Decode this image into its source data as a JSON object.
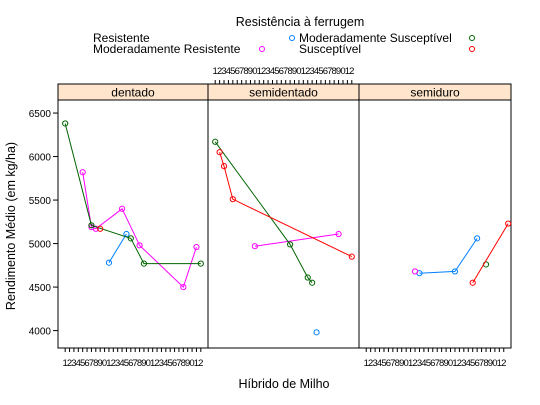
{
  "chart_data": {
    "type": "line",
    "legend": {
      "title": "Resistência à ferrugem",
      "placement": "top",
      "entries": [
        {
          "name": "Resistente",
          "color": "#0080ff"
        },
        {
          "name": "Moderadamente Resistente",
          "color": "#ff00ff"
        },
        {
          "name": "Moderadamente Susceptível",
          "color": "#006400"
        },
        {
          "name": "Susceptível",
          "color": "#ff0000"
        }
      ]
    },
    "xlabel": "Híbrido de Milho",
    "ylabel": "Rendimento Médio (em kg/ha)",
    "xlim": [
      0,
      33
    ],
    "ylim": [
      3800,
      6650
    ],
    "yticks": [
      4000,
      4500,
      5000,
      5500,
      6000,
      6500
    ],
    "xtick_labels": [
      "1",
      "2",
      "3",
      "4",
      "5",
      "6",
      "7",
      "8",
      "9",
      "10",
      "11",
      "12",
      "13",
      "14",
      "15",
      "16",
      "17",
      "18",
      "19",
      "20",
      "21",
      "22",
      "23",
      "24",
      "25",
      "26",
      "27",
      "28",
      "29",
      "30",
      "31",
      "32"
    ],
    "strip_color": "#ffe5cc",
    "panels": [
      {
        "name": "dentado",
        "series": [
          {
            "name": "Resistente",
            "points": [
              [
                11,
                4780
              ],
              [
                15,
                5110
              ]
            ]
          },
          {
            "name": "Moderadamente Resistente",
            "points": [
              [
                5,
                5820
              ],
              [
                7,
                5190
              ],
              [
                8,
                5170
              ],
              [
                14,
                5400
              ],
              [
                18,
                4980
              ],
              [
                28,
                4500
              ],
              [
                31,
                4960
              ]
            ]
          },
          {
            "name": "Moderadamente Susceptível",
            "points": [
              [
                1,
                6380
              ],
              [
                7,
                5210
              ],
              [
                16,
                5060
              ],
              [
                19,
                4770
              ],
              [
                32,
                4770
              ]
            ]
          },
          {
            "name": "Susceptível",
            "points": [
              [
                9,
                5170
              ]
            ]
          }
        ]
      },
      {
        "name": "semidentado",
        "series": [
          {
            "name": "Resistente",
            "points": [
              [
                24,
                3980
              ]
            ]
          },
          {
            "name": "Moderadamente Resistente",
            "points": [
              [
                10,
                4970
              ],
              [
                29,
                5110
              ]
            ]
          },
          {
            "name": "Moderadamente Susceptível",
            "points": [
              [
                1,
                6170
              ],
              [
                18,
                4990
              ],
              [
                22,
                4610
              ],
              [
                23,
                4550
              ]
            ]
          },
          {
            "name": "Susceptível",
            "points": [
              [
                2,
                6050
              ],
              [
                3,
                5890
              ],
              [
                5,
                5510
              ],
              [
                32,
                4850
              ]
            ]
          }
        ]
      },
      {
        "name": "semiduro",
        "series": [
          {
            "name": "Resistente",
            "points": [
              [
                13,
                4660
              ],
              [
                21,
                4680
              ],
              [
                26,
                5060
              ]
            ]
          },
          {
            "name": "Moderadamente Resistente",
            "points": [
              [
                12,
                4680
              ]
            ]
          },
          {
            "name": "Moderadamente Susceptível",
            "points": [
              [
                28,
                4760
              ]
            ]
          },
          {
            "name": "Susceptível",
            "points": [
              [
                25,
                4550
              ],
              [
                33,
                5230
              ]
            ]
          }
        ]
      }
    ]
  }
}
